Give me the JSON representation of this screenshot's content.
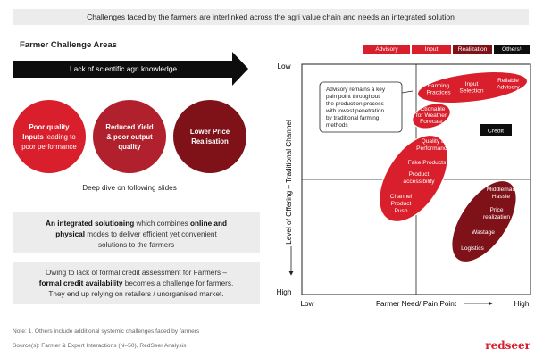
{
  "header": {
    "banner": "Challenges faced by the farmers are interlinked across the agri value chain and needs an integrated solution"
  },
  "left": {
    "section_title": "Farmer Challenge Areas",
    "arrow_text": "Lack of scientific agri knowledge",
    "circles": [
      {
        "line1": "Poor quality",
        "line2": "Inputs",
        "line2_rest": " leading to",
        "line3": "poor performance"
      },
      {
        "line1": "Reduced Yield",
        "line2": "& poor output",
        "line3": "quality"
      },
      {
        "line1": "Lower Price",
        "line2": "Realisation"
      }
    ],
    "deep_dive": "Deep dive on following slides",
    "box1": {
      "line1_a": "An ",
      "line1_b": "integrated solutioning",
      "line1_c": " which combines ",
      "line1_d": "online and",
      "line2_a": "physical",
      "line2_b": " modes to deliver efficient yet convenient",
      "line3": "solutions to the farmers"
    },
    "box2": {
      "line1": "Owing to lack of formal credit assessment for Farmers –",
      "line2_a": "formal credit availability",
      "line2_b": " becomes a challenge for farmers.",
      "line3": "They end up relying on retailers / unorganised market."
    }
  },
  "legend": {
    "advisory": "Advisory",
    "input": "Input",
    "realization": "Realization",
    "others": "Others¹"
  },
  "matrix": {
    "y_axis_title": "Level of Offering – Traditional Channel",
    "x_axis_title": "Farmer Need/ Pain Point",
    "y_low": "Low",
    "y_high": "High",
    "x_low": "Low",
    "x_high": "High",
    "callout": [
      "Advisory remains a key",
      "pain point  throughout",
      "the production process",
      "with lowest penetration",
      "by traditional farming",
      "methods"
    ],
    "advisory_items": [
      [
        "Farming",
        "Practices"
      ],
      [
        "Input",
        "Selection"
      ],
      [
        "Reliable",
        "Advisory"
      ]
    ],
    "weather_item": [
      "Actionable",
      "for Weather",
      "Forecast"
    ],
    "input_items": [
      [
        "Quality &",
        "Performance"
      ],
      [
        "Fake Products"
      ],
      [
        "Product",
        "accessibility"
      ],
      [
        "Channel",
        "Product",
        "Push"
      ]
    ],
    "realization_items": [
      [
        "Middleman",
        "Hassle"
      ],
      [
        "Price",
        "realization"
      ],
      [
        "Wastage"
      ],
      [
        "Logistics"
      ]
    ],
    "others_item": "Credit"
  },
  "footer": {
    "note": "Note: 1. Others include  additional systemic challenges faced by farmers",
    "sources": "Source(s): Farmer & Expert Interactions (N=50), RedSeer Analysis",
    "brand": "redseer"
  },
  "colors": {
    "red": "#d81f2b",
    "maroon": "#7e1218",
    "black": "#0d0d0d",
    "grey": "#ececec"
  }
}
